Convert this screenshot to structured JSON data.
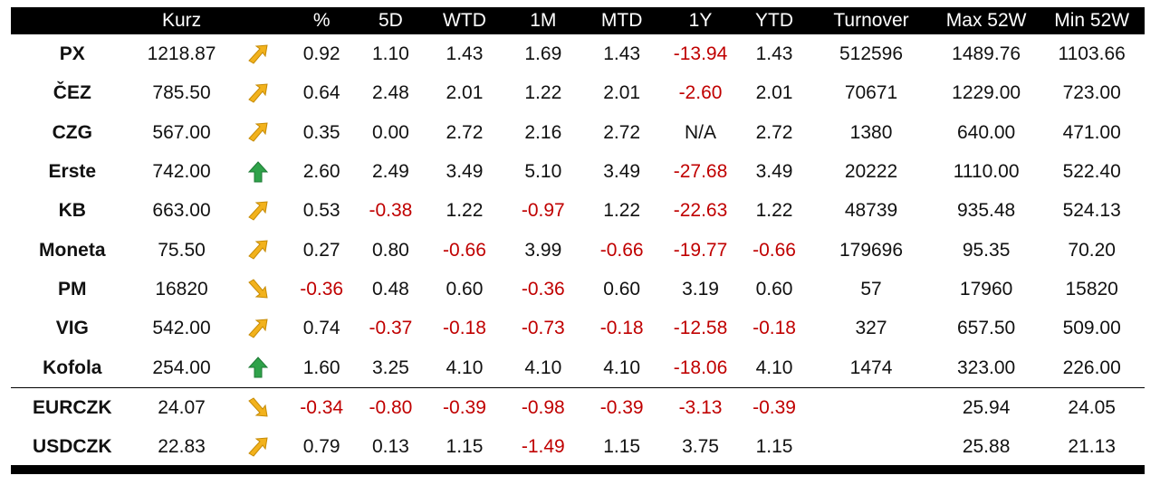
{
  "colors": {
    "header_bg": "#000000",
    "header_text": "#ffffff",
    "negative": "#c00000",
    "arrow_flat_up": "#f2b21c",
    "arrow_flat_down": "#f2b21c",
    "arrow_up": "#2fa24a"
  },
  "columns": [
    "",
    "Kurz",
    "",
    "%",
    "5D",
    "WTD",
    "1M",
    "MTD",
    "1Y",
    "YTD",
    "Turnover",
    "Max 52W",
    "Min 52W"
  ],
  "rows": [
    {
      "name": "PX",
      "kurz": "1218.87",
      "arrow": "up-right",
      "pct": "0.92",
      "d5": "1.10",
      "wtd": "1.43",
      "m1": "1.69",
      "mtd": "1.43",
      "y1": "-13.94",
      "ytd": "1.43",
      "turnover": "512596",
      "max52": "1489.76",
      "min52": "1103.66"
    },
    {
      "name": "ČEZ",
      "kurz": "785.50",
      "arrow": "up-right",
      "pct": "0.64",
      "d5": "2.48",
      "wtd": "2.01",
      "m1": "1.22",
      "mtd": "2.01",
      "y1": "-2.60",
      "ytd": "2.01",
      "turnover": "70671",
      "max52": "1229.00",
      "min52": "723.00"
    },
    {
      "name": "CZG",
      "kurz": "567.00",
      "arrow": "up-right",
      "pct": "0.35",
      "d5": "0.00",
      "wtd": "2.72",
      "m1": "2.16",
      "mtd": "2.72",
      "y1": "N/A",
      "ytd": "2.72",
      "turnover": "1380",
      "max52": "640.00",
      "min52": "471.00"
    },
    {
      "name": "Erste",
      "kurz": "742.00",
      "arrow": "up",
      "pct": "2.60",
      "d5": "2.49",
      "wtd": "3.49",
      "m1": "5.10",
      "mtd": "3.49",
      "y1": "-27.68",
      "ytd": "3.49",
      "turnover": "20222",
      "max52": "1110.00",
      "min52": "522.40"
    },
    {
      "name": "KB",
      "kurz": "663.00",
      "arrow": "up-right",
      "pct": "0.53",
      "d5": "-0.38",
      "wtd": "1.22",
      "m1": "-0.97",
      "mtd": "1.22",
      "y1": "-22.63",
      "ytd": "1.22",
      "turnover": "48739",
      "max52": "935.48",
      "min52": "524.13"
    },
    {
      "name": "Moneta",
      "kurz": "75.50",
      "arrow": "up-right",
      "pct": "0.27",
      "d5": "0.80",
      "wtd": "-0.66",
      "m1": "3.99",
      "mtd": "-0.66",
      "y1": "-19.77",
      "ytd": "-0.66",
      "turnover": "179696",
      "max52": "95.35",
      "min52": "70.20"
    },
    {
      "name": "PM",
      "kurz": "16820",
      "arrow": "down-right",
      "pct": "-0.36",
      "d5": "0.48",
      "wtd": "0.60",
      "m1": "-0.36",
      "mtd": "0.60",
      "y1": "3.19",
      "ytd": "0.60",
      "turnover": "57",
      "max52": "17960",
      "min52": "15820"
    },
    {
      "name": "VIG",
      "kurz": "542.00",
      "arrow": "up-right",
      "pct": "0.74",
      "d5": "-0.37",
      "wtd": "-0.18",
      "m1": "-0.73",
      "mtd": "-0.18",
      "y1": "-12.58",
      "ytd": "-0.18",
      "turnover": "327",
      "max52": "657.50",
      "min52": "509.00"
    },
    {
      "name": "Kofola",
      "kurz": "254.00",
      "arrow": "up",
      "pct": "1.60",
      "d5": "3.25",
      "wtd": "4.10",
      "m1": "4.10",
      "mtd": "4.10",
      "y1": "-18.06",
      "ytd": "4.10",
      "turnover": "1474",
      "max52": "323.00",
      "min52": "226.00"
    },
    {
      "name": "EURCZK",
      "kurz": "24.07",
      "arrow": "down-right",
      "pct": "-0.34",
      "d5": "-0.80",
      "wtd": "-0.39",
      "m1": "-0.98",
      "mtd": "-0.39",
      "y1": "-3.13",
      "ytd": "-0.39",
      "turnover": "",
      "max52": "25.94",
      "min52": "24.05"
    },
    {
      "name": "USDCZK",
      "kurz": "22.83",
      "arrow": "up-right",
      "pct": "0.79",
      "d5": "0.13",
      "wtd": "1.15",
      "m1": "-1.49",
      "mtd": "1.15",
      "y1": "3.75",
      "ytd": "1.15",
      "turnover": "",
      "max52": "25.88",
      "min52": "21.13"
    }
  ]
}
